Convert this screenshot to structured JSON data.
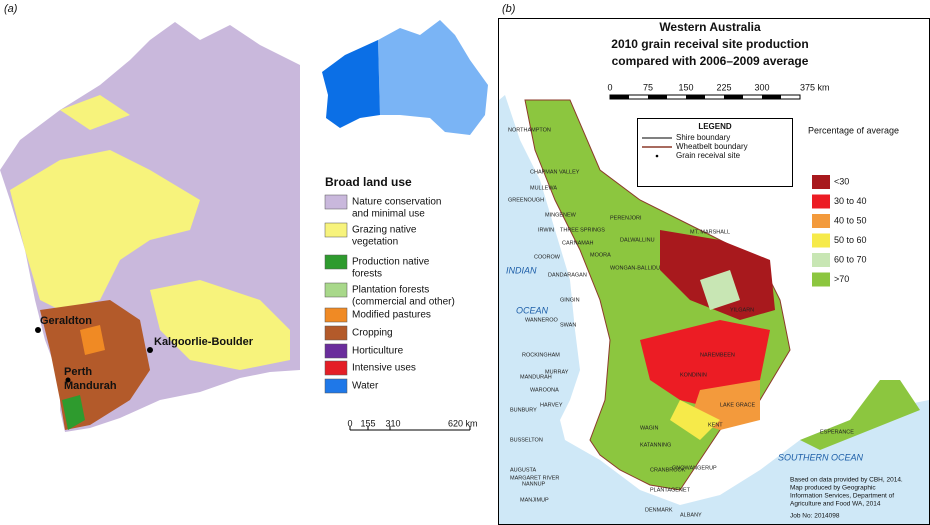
{
  "panel_a": {
    "label": "(a)",
    "places": [
      "Geraldton",
      "Perth",
      "Mandurah",
      "Kalgoorlie-Boulder"
    ],
    "legend_title": "Broad land use",
    "legend": [
      {
        "lines": [
          "Nature conservation",
          "and minimal use"
        ],
        "color": "#c9b8dc"
      },
      {
        "lines": [
          "Grazing native",
          "vegetation"
        ],
        "color": "#f7f37c"
      },
      {
        "lines": [
          "Production native",
          "forests"
        ],
        "color": "#2e9b2e"
      },
      {
        "lines": [
          "Plantation forests",
          "(commercial and other)"
        ],
        "color": "#a8d88a"
      },
      {
        "lines": [
          "Modified pastures"
        ],
        "color": "#f08a24"
      },
      {
        "lines": [
          "Cropping"
        ],
        "color": "#b35a2a"
      },
      {
        "lines": [
          "Horticulture"
        ],
        "color": "#6a2d9c"
      },
      {
        "lines": [
          "Intensive uses"
        ],
        "color": "#e41e26"
      },
      {
        "lines": [
          "Water"
        ],
        "color": "#1f78e8"
      }
    ],
    "scale": [
      0,
      155,
      310,
      "620 km"
    ]
  },
  "panel_b": {
    "label": "(b)",
    "title": [
      "Western Australia",
      "2010 grain receival site production",
      "compared with 2006–2009 average"
    ],
    "scale": [
      0,
      75,
      150,
      225,
      300,
      "375 km"
    ],
    "legend_title": "LEGEND",
    "legend": [
      "Shire boundary",
      "Wheatbelt boundary",
      "Grain receival site"
    ],
    "percentage_title": "Percentage of average",
    "percentage": [
      {
        "label": "<30",
        "color": "#a8191d"
      },
      {
        "label": "30 to 40",
        "color": "#ec1c24"
      },
      {
        "label": "40 to 50",
        "color": "#f39a3c"
      },
      {
        "label": "50 to 60",
        "color": "#f6ea4a"
      },
      {
        "label": "60 to 70",
        "color": "#c8e6b4"
      },
      {
        "label": ">70",
        "color": "#8cc63f"
      }
    ],
    "oceans": [
      "INDIAN",
      "OCEAN",
      "SOUTHERN OCEAN"
    ],
    "shires": [
      "NORTHAMPTON",
      "CHAPMAN VALLEY",
      "MULLEWA",
      "GREENOUGH",
      "MINGENEW",
      "IRWIN",
      "THREE SPRINGS",
      "CARNAMAH",
      "COOROW",
      "PERENJORI",
      "DALWALLINU",
      "MOORA",
      "DANDARAGAN",
      "WONGAN-BALLIDU",
      "MT. MARSHALL",
      "GINGIN",
      "WANNEROO",
      "SWAN",
      "YILGARN",
      "ROCKINGHAM",
      "MANDURAH",
      "MURRAY",
      "WAROONA",
      "HARVEY",
      "NAREMBEEN",
      "KONDININ",
      "BUNBURY",
      "BUSSELTON",
      "AUGUSTA",
      "MARGARET RIVER",
      "NANNUP",
      "WAGIN",
      "KATANNING",
      "LAKE GRACE",
      "KENT",
      "GNOWANGERUP",
      "CRANBROOK",
      "PLANTAGENET",
      "MANJIMUP",
      "DENMARK",
      "ALBANY",
      "ESPERANCE"
    ],
    "footnote": [
      "Based on data provided by CBH, 2014.",
      "Map produced by Geographic",
      "Information Services, Department of",
      "Agriculture and Food WA, 2014",
      "Job No: 2014098"
    ]
  }
}
